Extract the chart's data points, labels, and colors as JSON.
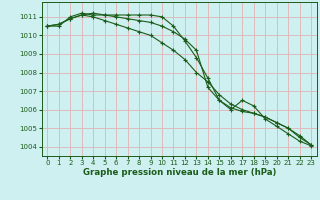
{
  "title": "Graphe pression niveau de la mer (hPa)",
  "bg_color": "#cff0f0",
  "grid_color": "#ddbbbb",
  "line_color": "#1a5c1a",
  "x_ticks": [
    0,
    1,
    2,
    3,
    4,
    5,
    6,
    7,
    8,
    9,
    10,
    11,
    12,
    13,
    14,
    15,
    16,
    17,
    18,
    19,
    20,
    21,
    22,
    23
  ],
  "ylim": [
    1003.5,
    1011.8
  ],
  "y_ticks": [
    1004,
    1005,
    1006,
    1007,
    1008,
    1009,
    1010,
    1011
  ],
  "series": [
    [
      1010.5,
      1010.5,
      1011.0,
      1011.2,
      1011.1,
      1011.1,
      1011.1,
      1011.1,
      1011.1,
      1011.1,
      1011.0,
      1010.5,
      1009.7,
      1008.8,
      1007.7,
      1006.5,
      1006.0,
      1006.5,
      1006.2,
      1005.5,
      1005.1,
      1004.7,
      1004.3,
      1004.05
    ],
    [
      1010.5,
      1010.6,
      1010.9,
      1011.1,
      1011.0,
      1010.8,
      1010.6,
      1010.4,
      1010.2,
      1010.0,
      1009.6,
      1009.2,
      1008.7,
      1008.0,
      1007.5,
      1006.8,
      1006.3,
      1006.0,
      1005.8,
      1005.6,
      1005.3,
      1005.0,
      1004.5,
      1004.1
    ],
    [
      1010.5,
      1010.6,
      1010.9,
      1011.1,
      1011.2,
      1011.1,
      1011.0,
      1010.9,
      1010.8,
      1010.7,
      1010.5,
      1010.2,
      1009.8,
      1009.2,
      1007.2,
      1006.5,
      1006.1,
      1005.9,
      1005.8,
      1005.6,
      1005.3,
      1005.0,
      1004.6,
      1004.1
    ]
  ]
}
